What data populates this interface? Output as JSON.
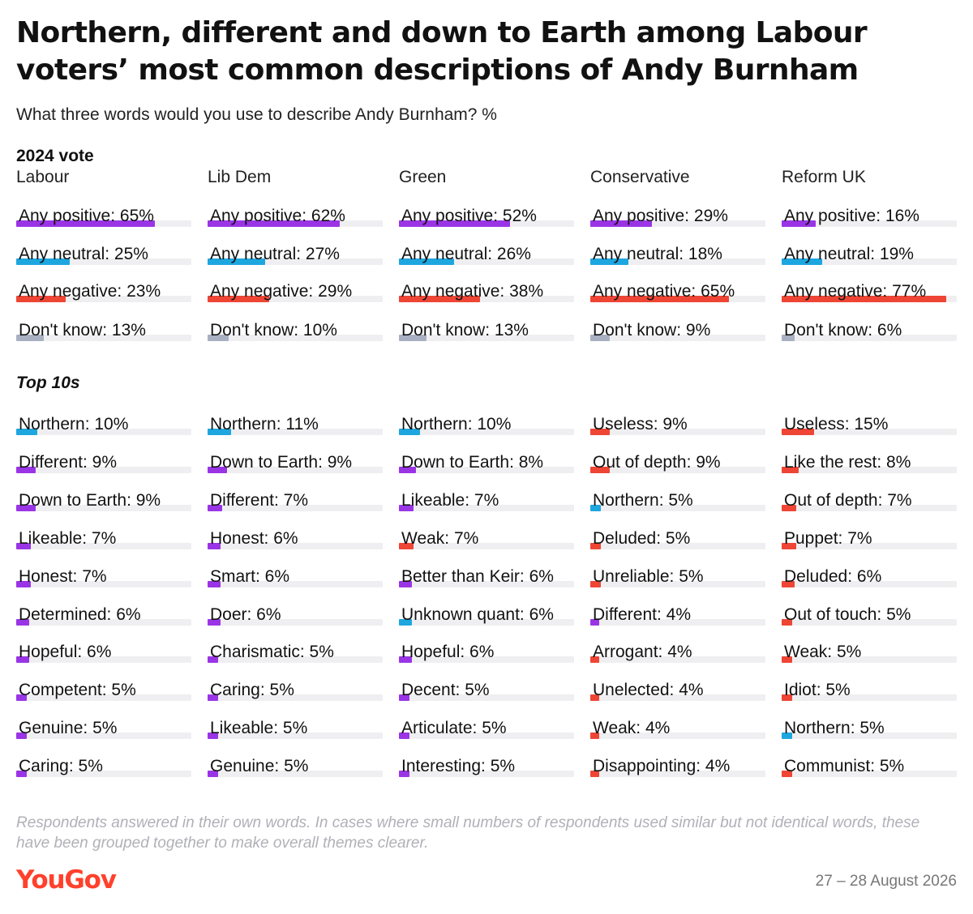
{
  "title": "Northern, different and down to Earth among Labour voters’ most common descriptions of Andy Burnham",
  "subtitle": "What three words would you use to describe Andy Burnham? %",
  "group_label": "2024 vote",
  "top10_label": "Top 10s",
  "footnote": "Respondents answered in their own words. In cases where small numbers of respondents used similar but not identical words, these have been grouped together to make overall themes clearer.",
  "logo": "YouGov",
  "date": "27 – 28 August 2026",
  "colors": {
    "positive": "#9a35e6",
    "neutral": "#1ea6df",
    "negative": "#ee4535",
    "dontknow": "#a9b0c2",
    "track": "#efeff2",
    "logo": "#ff412c"
  },
  "chart_data": {
    "type": "bar",
    "scale_max": 82,
    "columns": [
      {
        "name": "Labour",
        "summary": [
          {
            "label": "Any positive",
            "value": 65,
            "kind": "positive"
          },
          {
            "label": "Any neutral",
            "value": 25,
            "kind": "neutral"
          },
          {
            "label": "Any negative",
            "value": 23,
            "kind": "negative"
          },
          {
            "label": "Don't know",
            "value": 13,
            "kind": "dontknow"
          }
        ],
        "top10": [
          {
            "label": "Northern",
            "value": 10,
            "kind": "neutral"
          },
          {
            "label": "Different",
            "value": 9,
            "kind": "positive"
          },
          {
            "label": "Down to Earth",
            "value": 9,
            "kind": "positive"
          },
          {
            "label": "Likeable",
            "value": 7,
            "kind": "positive"
          },
          {
            "label": "Honest",
            "value": 7,
            "kind": "positive"
          },
          {
            "label": "Determined",
            "value": 6,
            "kind": "positive"
          },
          {
            "label": "Hopeful",
            "value": 6,
            "kind": "positive"
          },
          {
            "label": "Competent",
            "value": 5,
            "kind": "positive"
          },
          {
            "label": "Genuine",
            "value": 5,
            "kind": "positive"
          },
          {
            "label": "Caring",
            "value": 5,
            "kind": "positive"
          }
        ]
      },
      {
        "name": "Lib Dem",
        "summary": [
          {
            "label": "Any positive",
            "value": 62,
            "kind": "positive"
          },
          {
            "label": "Any neutral",
            "value": 27,
            "kind": "neutral"
          },
          {
            "label": "Any negative",
            "value": 29,
            "kind": "negative"
          },
          {
            "label": "Don't know",
            "value": 10,
            "kind": "dontknow"
          }
        ],
        "top10": [
          {
            "label": "Northern",
            "value": 11,
            "kind": "neutral"
          },
          {
            "label": "Down to Earth",
            "value": 9,
            "kind": "positive"
          },
          {
            "label": "Different",
            "value": 7,
            "kind": "positive"
          },
          {
            "label": "Honest",
            "value": 6,
            "kind": "positive"
          },
          {
            "label": "Smart",
            "value": 6,
            "kind": "positive"
          },
          {
            "label": "Doer",
            "value": 6,
            "kind": "positive"
          },
          {
            "label": "Charismatic",
            "value": 5,
            "kind": "positive"
          },
          {
            "label": "Caring",
            "value": 5,
            "kind": "positive"
          },
          {
            "label": "Likeable",
            "value": 5,
            "kind": "positive"
          },
          {
            "label": "Genuine",
            "value": 5,
            "kind": "positive"
          }
        ]
      },
      {
        "name": "Green",
        "summary": [
          {
            "label": "Any positive",
            "value": 52,
            "kind": "positive"
          },
          {
            "label": "Any neutral",
            "value": 26,
            "kind": "neutral"
          },
          {
            "label": "Any negative",
            "value": 38,
            "kind": "negative"
          },
          {
            "label": "Don't know",
            "value": 13,
            "kind": "dontknow"
          }
        ],
        "top10": [
          {
            "label": "Northern",
            "value": 10,
            "kind": "neutral"
          },
          {
            "label": "Down to Earth",
            "value": 8,
            "kind": "positive"
          },
          {
            "label": "Likeable",
            "value": 7,
            "kind": "positive"
          },
          {
            "label": "Weak",
            "value": 7,
            "kind": "negative"
          },
          {
            "label": "Better than Keir",
            "value": 6,
            "kind": "positive"
          },
          {
            "label": "Unknown quant",
            "value": 6,
            "kind": "neutral"
          },
          {
            "label": "Hopeful",
            "value": 6,
            "kind": "positive"
          },
          {
            "label": "Decent",
            "value": 5,
            "kind": "positive"
          },
          {
            "label": "Articulate",
            "value": 5,
            "kind": "positive"
          },
          {
            "label": "Interesting",
            "value": 5,
            "kind": "positive"
          }
        ]
      },
      {
        "name": "Conservative",
        "summary": [
          {
            "label": "Any positive",
            "value": 29,
            "kind": "positive"
          },
          {
            "label": "Any neutral",
            "value": 18,
            "kind": "neutral"
          },
          {
            "label": "Any negative",
            "value": 65,
            "kind": "negative"
          },
          {
            "label": "Don't know",
            "value": 9,
            "kind": "dontknow"
          }
        ],
        "top10": [
          {
            "label": "Useless",
            "value": 9,
            "kind": "negative"
          },
          {
            "label": "Out of depth",
            "value": 9,
            "kind": "negative"
          },
          {
            "label": "Northern",
            "value": 5,
            "kind": "neutral"
          },
          {
            "label": "Deluded",
            "value": 5,
            "kind": "negative"
          },
          {
            "label": "Unreliable",
            "value": 5,
            "kind": "negative"
          },
          {
            "label": "Different",
            "value": 4,
            "kind": "positive"
          },
          {
            "label": "Arrogant",
            "value": 4,
            "kind": "negative"
          },
          {
            "label": "Unelected",
            "value": 4,
            "kind": "negative"
          },
          {
            "label": "Weak",
            "value": 4,
            "kind": "negative"
          },
          {
            "label": "Disappointing",
            "value": 4,
            "kind": "negative"
          }
        ]
      },
      {
        "name": "Reform UK",
        "summary": [
          {
            "label": "Any positive",
            "value": 16,
            "kind": "positive"
          },
          {
            "label": "Any neutral",
            "value": 19,
            "kind": "neutral"
          },
          {
            "label": "Any negative",
            "value": 77,
            "kind": "negative"
          },
          {
            "label": "Don't know",
            "value": 6,
            "kind": "dontknow"
          }
        ],
        "top10": [
          {
            "label": "Useless",
            "value": 15,
            "kind": "negative"
          },
          {
            "label": "Like the rest",
            "value": 8,
            "kind": "negative"
          },
          {
            "label": "Out of depth",
            "value": 7,
            "kind": "negative"
          },
          {
            "label": "Puppet",
            "value": 7,
            "kind": "negative"
          },
          {
            "label": "Deluded",
            "value": 6,
            "kind": "negative"
          },
          {
            "label": "Out of touch",
            "value": 5,
            "kind": "negative"
          },
          {
            "label": "Weak",
            "value": 5,
            "kind": "negative"
          },
          {
            "label": "Idiot",
            "value": 5,
            "kind": "negative"
          },
          {
            "label": "Northern",
            "value": 5,
            "kind": "neutral"
          },
          {
            "label": "Communist",
            "value": 5,
            "kind": "negative"
          }
        ]
      }
    ]
  }
}
